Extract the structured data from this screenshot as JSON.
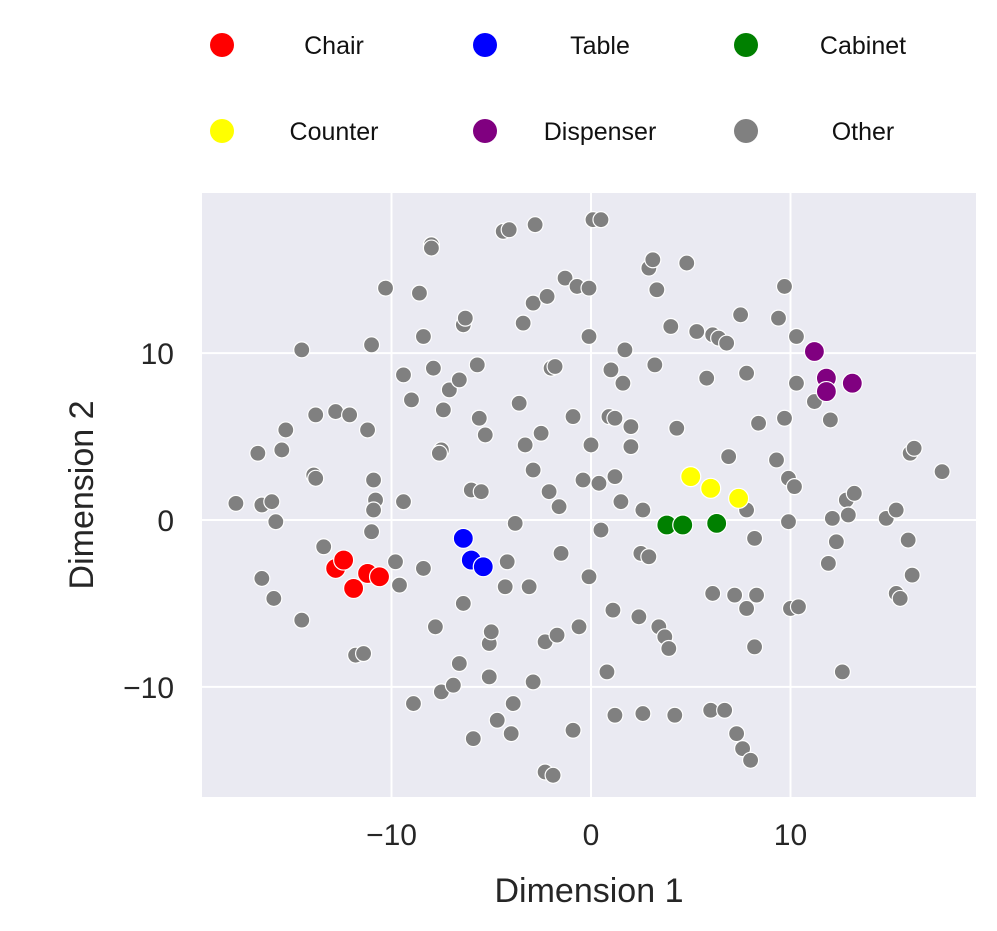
{
  "chart_data": {
    "type": "scatter",
    "xlabel": "Dimension 1",
    "ylabel": "Dimension 2",
    "xlim": [
      -19.5,
      19.3
    ],
    "ylim": [
      -16.6,
      19.6
    ],
    "xticks": [
      -10,
      0,
      10
    ],
    "yticks": [
      -10,
      0,
      10
    ],
    "xtick_labels": [
      "−10",
      "0",
      "10"
    ],
    "ytick_labels": [
      "−10",
      "0",
      "10"
    ],
    "grid": true,
    "background": "#eaeaf2",
    "legend": {
      "placement": "top",
      "columns": 3
    },
    "series": [
      {
        "name": "Chair",
        "color": "#ff0000",
        "points": [
          [
            -12.8,
            -2.9
          ],
          [
            -12.4,
            -2.4
          ],
          [
            -11.9,
            -4.1
          ],
          [
            -11.2,
            -3.2
          ],
          [
            -10.6,
            -3.4
          ]
        ]
      },
      {
        "name": "Table",
        "color": "#0000ff",
        "points": [
          [
            -6.4,
            -1.1
          ],
          [
            -6.0,
            -2.4
          ],
          [
            -5.4,
            -2.8
          ]
        ]
      },
      {
        "name": "Cabinet",
        "color": "#008000",
        "points": [
          [
            3.8,
            -0.3
          ],
          [
            4.6,
            -0.3
          ],
          [
            6.3,
            -0.2
          ]
        ]
      },
      {
        "name": "Counter",
        "color": "#ffff00",
        "points": [
          [
            5.0,
            2.6
          ],
          [
            6.0,
            1.9
          ],
          [
            7.4,
            1.3
          ]
        ]
      },
      {
        "name": "Dispenser",
        "color": "#800080",
        "points": [
          [
            11.2,
            10.1
          ],
          [
            11.8,
            8.5
          ],
          [
            11.8,
            7.7
          ],
          [
            13.1,
            8.2
          ]
        ]
      },
      {
        "name": "Other",
        "color": "#808080",
        "points": [
          [
            -17.8,
            1.0
          ],
          [
            -16.7,
            4.0
          ],
          [
            -16.5,
            0.9
          ],
          [
            -16.5,
            -3.5
          ],
          [
            -16.0,
            1.1
          ],
          [
            -15.8,
            -0.1
          ],
          [
            -15.9,
            -4.7
          ],
          [
            -15.5,
            4.2
          ],
          [
            -15.3,
            5.4
          ],
          [
            -14.5,
            10.2
          ],
          [
            -14.5,
            -6.0
          ],
          [
            -13.9,
            2.7
          ],
          [
            -13.8,
            6.3
          ],
          [
            -13.8,
            2.5
          ],
          [
            -13.4,
            -1.6
          ],
          [
            -12.8,
            6.5
          ],
          [
            -12.1,
            6.3
          ],
          [
            -11.8,
            -8.1
          ],
          [
            -11.4,
            -8.0
          ],
          [
            -11.2,
            5.4
          ],
          [
            -11.0,
            10.5
          ],
          [
            -10.9,
            2.4
          ],
          [
            -10.8,
            1.2
          ],
          [
            -10.9,
            0.6
          ],
          [
            -11.0,
            -0.7
          ],
          [
            -10.3,
            13.9
          ],
          [
            -9.8,
            -2.5
          ],
          [
            -9.6,
            -3.9
          ],
          [
            -9.4,
            8.7
          ],
          [
            -9.4,
            1.1
          ],
          [
            -9.0,
            7.2
          ],
          [
            -8.9,
            -11.0
          ],
          [
            -8.6,
            13.6
          ],
          [
            -8.4,
            11.0
          ],
          [
            -8.4,
            -2.9
          ],
          [
            -8.0,
            16.5
          ],
          [
            -8.0,
            16.3
          ],
          [
            -7.9,
            9.1
          ],
          [
            -7.8,
            -6.4
          ],
          [
            -7.5,
            4.2
          ],
          [
            -7.6,
            4.0
          ],
          [
            -7.4,
            6.6
          ],
          [
            -7.5,
            -10.3
          ],
          [
            -7.1,
            7.8
          ],
          [
            -6.9,
            -9.9
          ],
          [
            -6.6,
            8.4
          ],
          [
            -6.6,
            -8.6
          ],
          [
            -6.4,
            11.7
          ],
          [
            -6.3,
            12.1
          ],
          [
            -6.4,
            -5.0
          ],
          [
            -6.0,
            1.8
          ],
          [
            -5.9,
            -13.1
          ],
          [
            -5.7,
            9.3
          ],
          [
            -5.6,
            6.1
          ],
          [
            -5.5,
            1.7
          ],
          [
            -5.3,
            5.1
          ],
          [
            -5.1,
            -9.4
          ],
          [
            -5.1,
            -7.4
          ],
          [
            -5.0,
            -6.7
          ],
          [
            -4.7,
            -12.0
          ],
          [
            -4.4,
            17.3
          ],
          [
            -4.2,
            -2.5
          ],
          [
            -4.3,
            -4.0
          ],
          [
            -4.1,
            17.4
          ],
          [
            -4.0,
            -12.8
          ],
          [
            -3.9,
            -11.0
          ],
          [
            -3.8,
            -0.2
          ],
          [
            -3.6,
            7.0
          ],
          [
            -3.4,
            11.8
          ],
          [
            -3.3,
            4.5
          ],
          [
            -3.1,
            -4.0
          ],
          [
            -2.9,
            13.0
          ],
          [
            -2.9,
            -9.7
          ],
          [
            -2.9,
            3.0
          ],
          [
            -2.8,
            17.7
          ],
          [
            -2.5,
            5.2
          ],
          [
            -2.2,
            13.4
          ],
          [
            -2.3,
            -7.3
          ],
          [
            -2.3,
            -15.1
          ],
          [
            -2.0,
            9.1
          ],
          [
            -2.1,
            1.7
          ],
          [
            -1.9,
            -15.3
          ],
          [
            -1.8,
            9.2
          ],
          [
            -1.7,
            -6.9
          ],
          [
            -1.6,
            0.8
          ],
          [
            -1.5,
            -2.0
          ],
          [
            -1.3,
            14.5
          ],
          [
            -0.9,
            -12.6
          ],
          [
            -0.9,
            6.2
          ],
          [
            -0.6,
            -6.4
          ],
          [
            -0.7,
            14.0
          ],
          [
            -0.4,
            2.4
          ],
          [
            -0.1,
            13.9
          ],
          [
            -0.1,
            -3.4
          ],
          [
            -0.1,
            11.0
          ],
          [
            0.0,
            4.5
          ],
          [
            0.1,
            18.0
          ],
          [
            0.5,
            18.0
          ],
          [
            0.4,
            2.2
          ],
          [
            0.5,
            -0.6
          ],
          [
            0.8,
            -9.1
          ],
          [
            0.9,
            6.2
          ],
          [
            1.0,
            9.0
          ],
          [
            1.2,
            2.6
          ],
          [
            1.2,
            6.1
          ],
          [
            1.1,
            -5.4
          ],
          [
            1.2,
            -11.7
          ],
          [
            1.5,
            1.1
          ],
          [
            1.6,
            8.2
          ],
          [
            1.7,
            10.2
          ],
          [
            2.0,
            5.6
          ],
          [
            2.0,
            4.4
          ],
          [
            2.4,
            -5.8
          ],
          [
            2.6,
            0.6
          ],
          [
            2.5,
            -2.0
          ],
          [
            2.6,
            -11.6
          ],
          [
            2.9,
            15.1
          ],
          [
            2.9,
            -2.2
          ],
          [
            3.1,
            15.6
          ],
          [
            3.2,
            9.3
          ],
          [
            3.3,
            13.8
          ],
          [
            3.4,
            -6.4
          ],
          [
            3.7,
            -7.0
          ],
          [
            3.9,
            -7.7
          ],
          [
            4.0,
            11.6
          ],
          [
            4.2,
            -11.7
          ],
          [
            4.3,
            5.5
          ],
          [
            4.8,
            15.4
          ],
          [
            5.3,
            11.3
          ],
          [
            5.8,
            8.5
          ],
          [
            6.1,
            11.1
          ],
          [
            6.0,
            -11.4
          ],
          [
            6.1,
            -4.4
          ],
          [
            6.4,
            10.9
          ],
          [
            6.7,
            -11.4
          ],
          [
            6.8,
            10.6
          ],
          [
            6.9,
            3.8
          ],
          [
            7.2,
            -4.5
          ],
          [
            7.3,
            -12.8
          ],
          [
            7.6,
            -13.7
          ],
          [
            7.5,
            12.3
          ],
          [
            7.8,
            0.6
          ],
          [
            7.8,
            8.8
          ],
          [
            7.8,
            -5.3
          ],
          [
            8.0,
            -14.4
          ],
          [
            8.2,
            -1.1
          ],
          [
            8.3,
            -4.5
          ],
          [
            8.2,
            -7.6
          ],
          [
            8.4,
            5.8
          ],
          [
            9.3,
            3.6
          ],
          [
            9.4,
            12.1
          ],
          [
            9.7,
            6.1
          ],
          [
            9.7,
            14.0
          ],
          [
            9.9,
            2.5
          ],
          [
            9.9,
            -0.1
          ],
          [
            10.0,
            -5.3
          ],
          [
            10.2,
            2.0
          ],
          [
            10.3,
            8.2
          ],
          [
            10.3,
            11.0
          ],
          [
            10.4,
            -5.2
          ],
          [
            11.2,
            7.1
          ],
          [
            11.9,
            -2.6
          ],
          [
            12.0,
            6.0
          ],
          [
            12.1,
            0.1
          ],
          [
            12.3,
            -1.3
          ],
          [
            12.6,
            -9.1
          ],
          [
            12.8,
            1.2
          ],
          [
            12.9,
            0.3
          ],
          [
            13.2,
            1.6
          ],
          [
            14.8,
            0.1
          ],
          [
            15.3,
            0.6
          ],
          [
            15.3,
            -4.4
          ],
          [
            15.5,
            -4.7
          ],
          [
            15.9,
            -1.2
          ],
          [
            16.0,
            4.0
          ],
          [
            16.2,
            4.3
          ],
          [
            16.1,
            -3.3
          ],
          [
            17.6,
            2.9
          ]
        ]
      }
    ]
  }
}
